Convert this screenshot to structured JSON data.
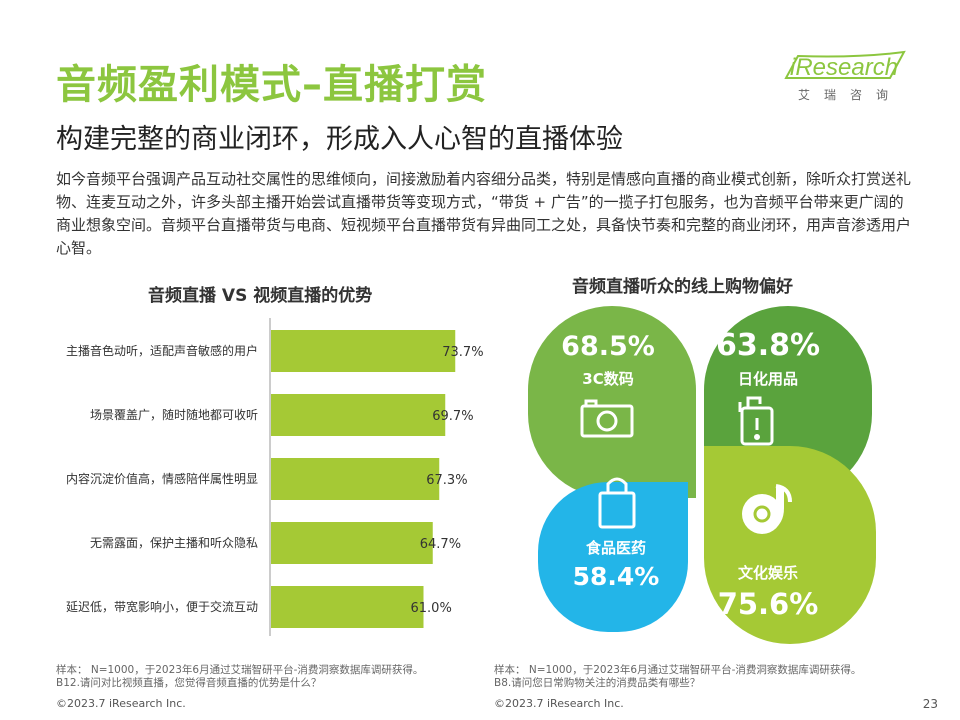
{
  "title": "音频盈利模式–直播打赏",
  "subtitle": "构建完整的商业闭环，形成入人心智的直播体验",
  "logo": {
    "text": "iResearch",
    "sub": "艾瑞咨询"
  },
  "intro": "如今音频平台强调产品互动社交属性的思维倾向，间接激励着内容细分品类，特别是情感向直播的商业模式创新，除听众打赏送礼物、连麦互动之外，许多头部主播开始尝试直播带货等变现方式，“带货 + 广告”的一揽子打包服务，也为音频平台带来更广阔的商业想象空间。音频平台直播带货与电商、短视频平台直播带货有异曲同工之处，具备快节奏和完整的商业闭环，用声音渗透用户心智。",
  "chart_data": [
    {
      "type": "bar",
      "orientation": "horizontal",
      "title": "音频直播 VS 视频直播的优势",
      "categories": [
        "主播音色动听，适配声音敏感的用户",
        "场景覆盖广，随时随地都可收听",
        "内容沉淀价值高，情感陪伴属性明显",
        "无需露面，保护主播和听众隐私",
        "延迟低，带宽影响小，便于交流互动"
      ],
      "values": [
        73.7,
        69.7,
        67.3,
        64.7,
        61.0
      ],
      "value_labels": [
        "73.7%",
        "69.7%",
        "67.3%",
        "64.7%",
        "61.0%"
      ],
      "bar_color": "#a5c935",
      "xlim": [
        0,
        100
      ]
    },
    {
      "type": "pie",
      "style": "four-leaf clover",
      "title": "音频直播听众的线上购物偏好",
      "items": [
        {
          "label": "3C数码",
          "value": 68.5,
          "value_label": "68.5%",
          "icon": "camera-icon",
          "color": "#7ab648"
        },
        {
          "label": "日化用品",
          "value": 63.8,
          "value_label": "63.8%",
          "icon": "bottle-icon",
          "color": "#5aa33d"
        },
        {
          "label": "食品医药",
          "value": 58.4,
          "value_label": "58.4%",
          "icon": "bag-icon",
          "color": "#23b5e8"
        },
        {
          "label": "文化娱乐",
          "value": 75.6,
          "value_label": "75.6%",
          "icon": "music-disc-icon",
          "color": "#a5c935"
        }
      ]
    }
  ],
  "footnotes": {
    "left": [
      "样本： N=1000，于2023年6月通过艾瑞智研平台-消费洞察数据库调研获得。",
      "B12.请问对比视频直播，您觉得音频直播的优势是什么？"
    ],
    "right": [
      "样本： N=1000，于2023年6月通过艾瑞智研平台-消费洞察数据库调研获得。",
      "B8.请问您日常购物关注的消费品类有哪些？"
    ]
  },
  "copyright": "©2023.7 iResearch Inc.",
  "page_number": "23"
}
